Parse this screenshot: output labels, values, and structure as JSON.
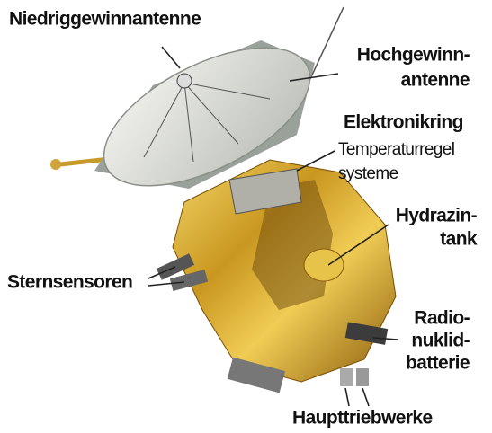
{
  "labels": [
    {
      "lines": [
        "Niedriggewinnantenne"
      ]
    },
    {
      "lines": [
        "Hochgewinn-",
        "antenne"
      ]
    },
    {
      "lines": [
        "Elektronikring"
      ]
    },
    {
      "lines": [
        "Temperaturregel",
        "systeme"
      ]
    },
    {
      "lines": [
        "Hydrazin-",
        "tank"
      ]
    },
    {
      "lines": [
        "Sternsensoren"
      ]
    },
    {
      "lines": [
        "Radio-",
        "nuklid-",
        "batterie"
      ]
    },
    {
      "lines": [
        "Haupttriebwerke"
      ]
    }
  ]
}
